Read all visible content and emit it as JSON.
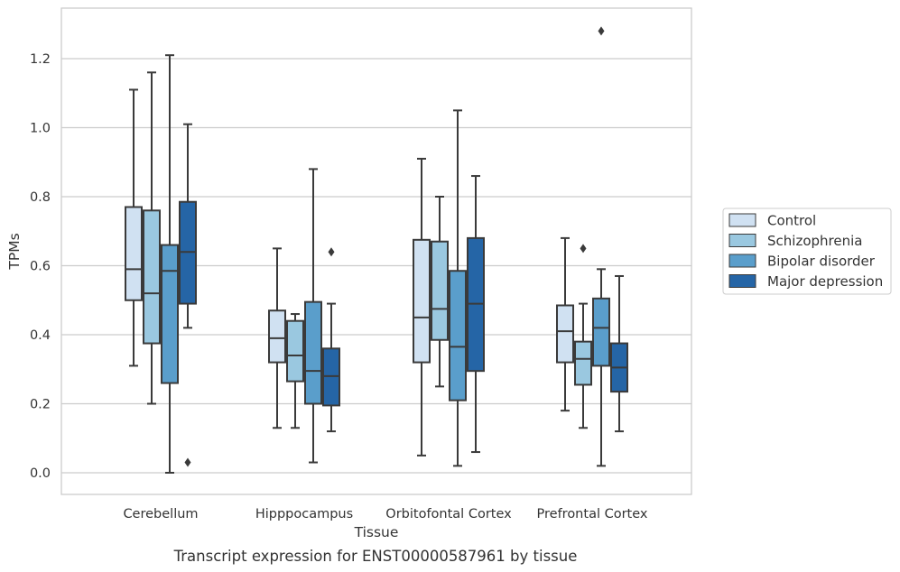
{
  "chart_data": {
    "type": "box",
    "title": "",
    "caption": "Transcript expression for ENST00000587961 by tissue",
    "xlabel": "Tissue",
    "ylabel": "TPMs",
    "ylim": [
      -0.06,
      1.35
    ],
    "yticks": [
      0.0,
      0.2,
      0.4,
      0.6,
      0.8,
      1.0,
      1.2
    ],
    "ytick_labels": [
      "0.0",
      "0.2",
      "0.4",
      "0.6",
      "0.8",
      "1.0",
      "1.2"
    ],
    "grid": "horizontal",
    "legend_position": "right",
    "categories": [
      "Cerebellum",
      "Hipppocampus",
      "Orbitofontal Cortex",
      "Prefrontal Cortex"
    ],
    "series": [
      {
        "name": "Control",
        "color": "#d0e1f2",
        "boxes": [
          {
            "whislo": 0.31,
            "q1": 0.5,
            "med": 0.59,
            "q3": 0.77,
            "whishi": 1.11,
            "fliers": []
          },
          {
            "whislo": 0.13,
            "q1": 0.32,
            "med": 0.39,
            "q3": 0.47,
            "whishi": 0.65,
            "fliers": []
          },
          {
            "whislo": 0.05,
            "q1": 0.32,
            "med": 0.45,
            "q3": 0.675,
            "whishi": 0.91,
            "fliers": []
          },
          {
            "whislo": 0.18,
            "q1": 0.32,
            "med": 0.41,
            "q3": 0.485,
            "whishi": 0.68,
            "fliers": []
          }
        ]
      },
      {
        "name": "Schizophrenia",
        "color": "#9ac8e0",
        "boxes": [
          {
            "whislo": 0.2,
            "q1": 0.375,
            "med": 0.52,
            "q3": 0.76,
            "whishi": 1.16,
            "fliers": []
          },
          {
            "whislo": 0.13,
            "q1": 0.265,
            "med": 0.34,
            "q3": 0.44,
            "whishi": 0.46,
            "fliers": []
          },
          {
            "whislo": 0.25,
            "q1": 0.385,
            "med": 0.475,
            "q3": 0.67,
            "whishi": 0.8,
            "fliers": []
          },
          {
            "whislo": 0.13,
            "q1": 0.255,
            "med": 0.33,
            "q3": 0.38,
            "whishi": 0.49,
            "fliers": [
              0.65
            ]
          }
        ]
      },
      {
        "name": "Bipolar disorder",
        "color": "#5a9ecb",
        "boxes": [
          {
            "whislo": 0.0,
            "q1": 0.26,
            "med": 0.585,
            "q3": 0.66,
            "whishi": 1.21,
            "fliers": []
          },
          {
            "whislo": 0.03,
            "q1": 0.2,
            "med": 0.295,
            "q3": 0.495,
            "whishi": 0.88,
            "fliers": []
          },
          {
            "whislo": 0.02,
            "q1": 0.21,
            "med": 0.365,
            "q3": 0.585,
            "whishi": 1.05,
            "fliers": []
          },
          {
            "whislo": 0.02,
            "q1": 0.31,
            "med": 0.42,
            "q3": 0.505,
            "whishi": 0.59,
            "fliers": [
              1.28
            ]
          }
        ]
      },
      {
        "name": "Major depression",
        "color": "#2565a6",
        "boxes": [
          {
            "whislo": 0.42,
            "q1": 0.49,
            "med": 0.64,
            "q3": 0.785,
            "whishi": 1.01,
            "fliers": [
              0.03
            ]
          },
          {
            "whislo": 0.12,
            "q1": 0.195,
            "med": 0.28,
            "q3": 0.36,
            "whishi": 0.49,
            "fliers": [
              0.64
            ]
          },
          {
            "whislo": 0.06,
            "q1": 0.295,
            "med": 0.49,
            "q3": 0.68,
            "whishi": 0.86,
            "fliers": []
          },
          {
            "whislo": 0.12,
            "q1": 0.235,
            "med": 0.305,
            "q3": 0.375,
            "whishi": 0.57,
            "fliers": []
          }
        ]
      }
    ]
  }
}
